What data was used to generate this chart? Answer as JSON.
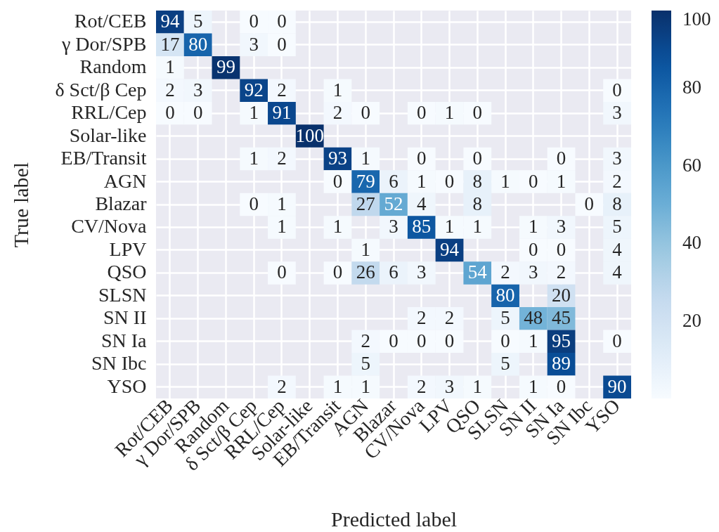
{
  "chart_data": {
    "type": "heatmap",
    "xlabel": "Predicted label",
    "ylabel": "True label",
    "categories": [
      "Rot/CEB",
      "γ Dor/SPB",
      "Random",
      "δ Sct/β Cep",
      "RRL/Cep",
      "Solar-like",
      "EB/Transit",
      "AGN",
      "Blazar",
      "CV/Nova",
      "LPV",
      "QSO",
      "SLSN",
      "SN II",
      "SN Ia",
      "SN Ibc",
      "YSO"
    ],
    "y_categories": [
      "Rot/CEB",
      "γ Dor/SPB",
      "Random",
      "δ Sct/β Cep",
      "RRL/Cep",
      "Solar-like",
      "EB/Transit",
      "AGN",
      "Blazar",
      "CV/Nova",
      "LPV",
      "QSO",
      "SLSN",
      "SN II",
      "SN Ia",
      "SN Ibc",
      "YSO"
    ],
    "cells": [
      [
        94,
        5,
        null,
        0,
        0,
        null,
        null,
        null,
        null,
        null,
        null,
        null,
        null,
        null,
        null,
        null,
        null
      ],
      [
        17,
        80,
        null,
        3,
        0,
        null,
        null,
        null,
        null,
        null,
        null,
        null,
        null,
        null,
        null,
        null,
        null
      ],
      [
        1,
        null,
        99,
        null,
        null,
        null,
        null,
        null,
        null,
        null,
        null,
        null,
        null,
        null,
        null,
        null,
        null
      ],
      [
        2,
        3,
        null,
        92,
        2,
        null,
        1,
        null,
        null,
        null,
        null,
        null,
        null,
        null,
        null,
        null,
        0
      ],
      [
        0,
        0,
        null,
        1,
        91,
        null,
        2,
        0,
        null,
        0,
        1,
        0,
        null,
        null,
        null,
        null,
        3
      ],
      [
        null,
        null,
        null,
        null,
        null,
        100,
        null,
        null,
        null,
        null,
        null,
        null,
        null,
        null,
        null,
        null,
        null
      ],
      [
        null,
        null,
        null,
        1,
        2,
        null,
        93,
        1,
        null,
        0,
        null,
        0,
        null,
        null,
        0,
        null,
        3
      ],
      [
        null,
        null,
        null,
        null,
        null,
        null,
        0,
        79,
        6,
        1,
        0,
        8,
        1,
        0,
        1,
        null,
        2
      ],
      [
        null,
        null,
        null,
        0,
        1,
        null,
        null,
        27,
        52,
        4,
        null,
        8,
        null,
        null,
        null,
        0,
        8
      ],
      [
        null,
        null,
        null,
        null,
        1,
        null,
        1,
        null,
        3,
        85,
        1,
        1,
        null,
        1,
        3,
        null,
        5
      ],
      [
        null,
        null,
        null,
        null,
        null,
        null,
        null,
        1,
        null,
        null,
        94,
        null,
        null,
        0,
        0,
        null,
        4
      ],
      [
        null,
        null,
        null,
        null,
        0,
        null,
        0,
        26,
        6,
        3,
        null,
        54,
        2,
        3,
        2,
        null,
        4
      ],
      [
        null,
        null,
        null,
        null,
        null,
        null,
        null,
        null,
        null,
        null,
        null,
        null,
        80,
        null,
        20,
        null,
        null
      ],
      [
        null,
        null,
        null,
        null,
        null,
        null,
        null,
        null,
        null,
        2,
        2,
        null,
        5,
        48,
        45,
        null,
        null
      ],
      [
        null,
        null,
        null,
        null,
        null,
        null,
        null,
        2,
        0,
        0,
        0,
        null,
        0,
        1,
        95,
        null,
        0
      ],
      [
        null,
        null,
        null,
        null,
        null,
        null,
        null,
        5,
        null,
        null,
        null,
        null,
        5,
        null,
        89,
        null,
        null
      ],
      [
        null,
        null,
        null,
        null,
        2,
        null,
        1,
        1,
        null,
        2,
        3,
        1,
        null,
        1,
        0,
        null,
        90
      ]
    ],
    "clim": [
      0,
      100
    ],
    "cticks": [
      20,
      40,
      60,
      80,
      100
    ],
    "data_labels": true,
    "grid": true
  }
}
